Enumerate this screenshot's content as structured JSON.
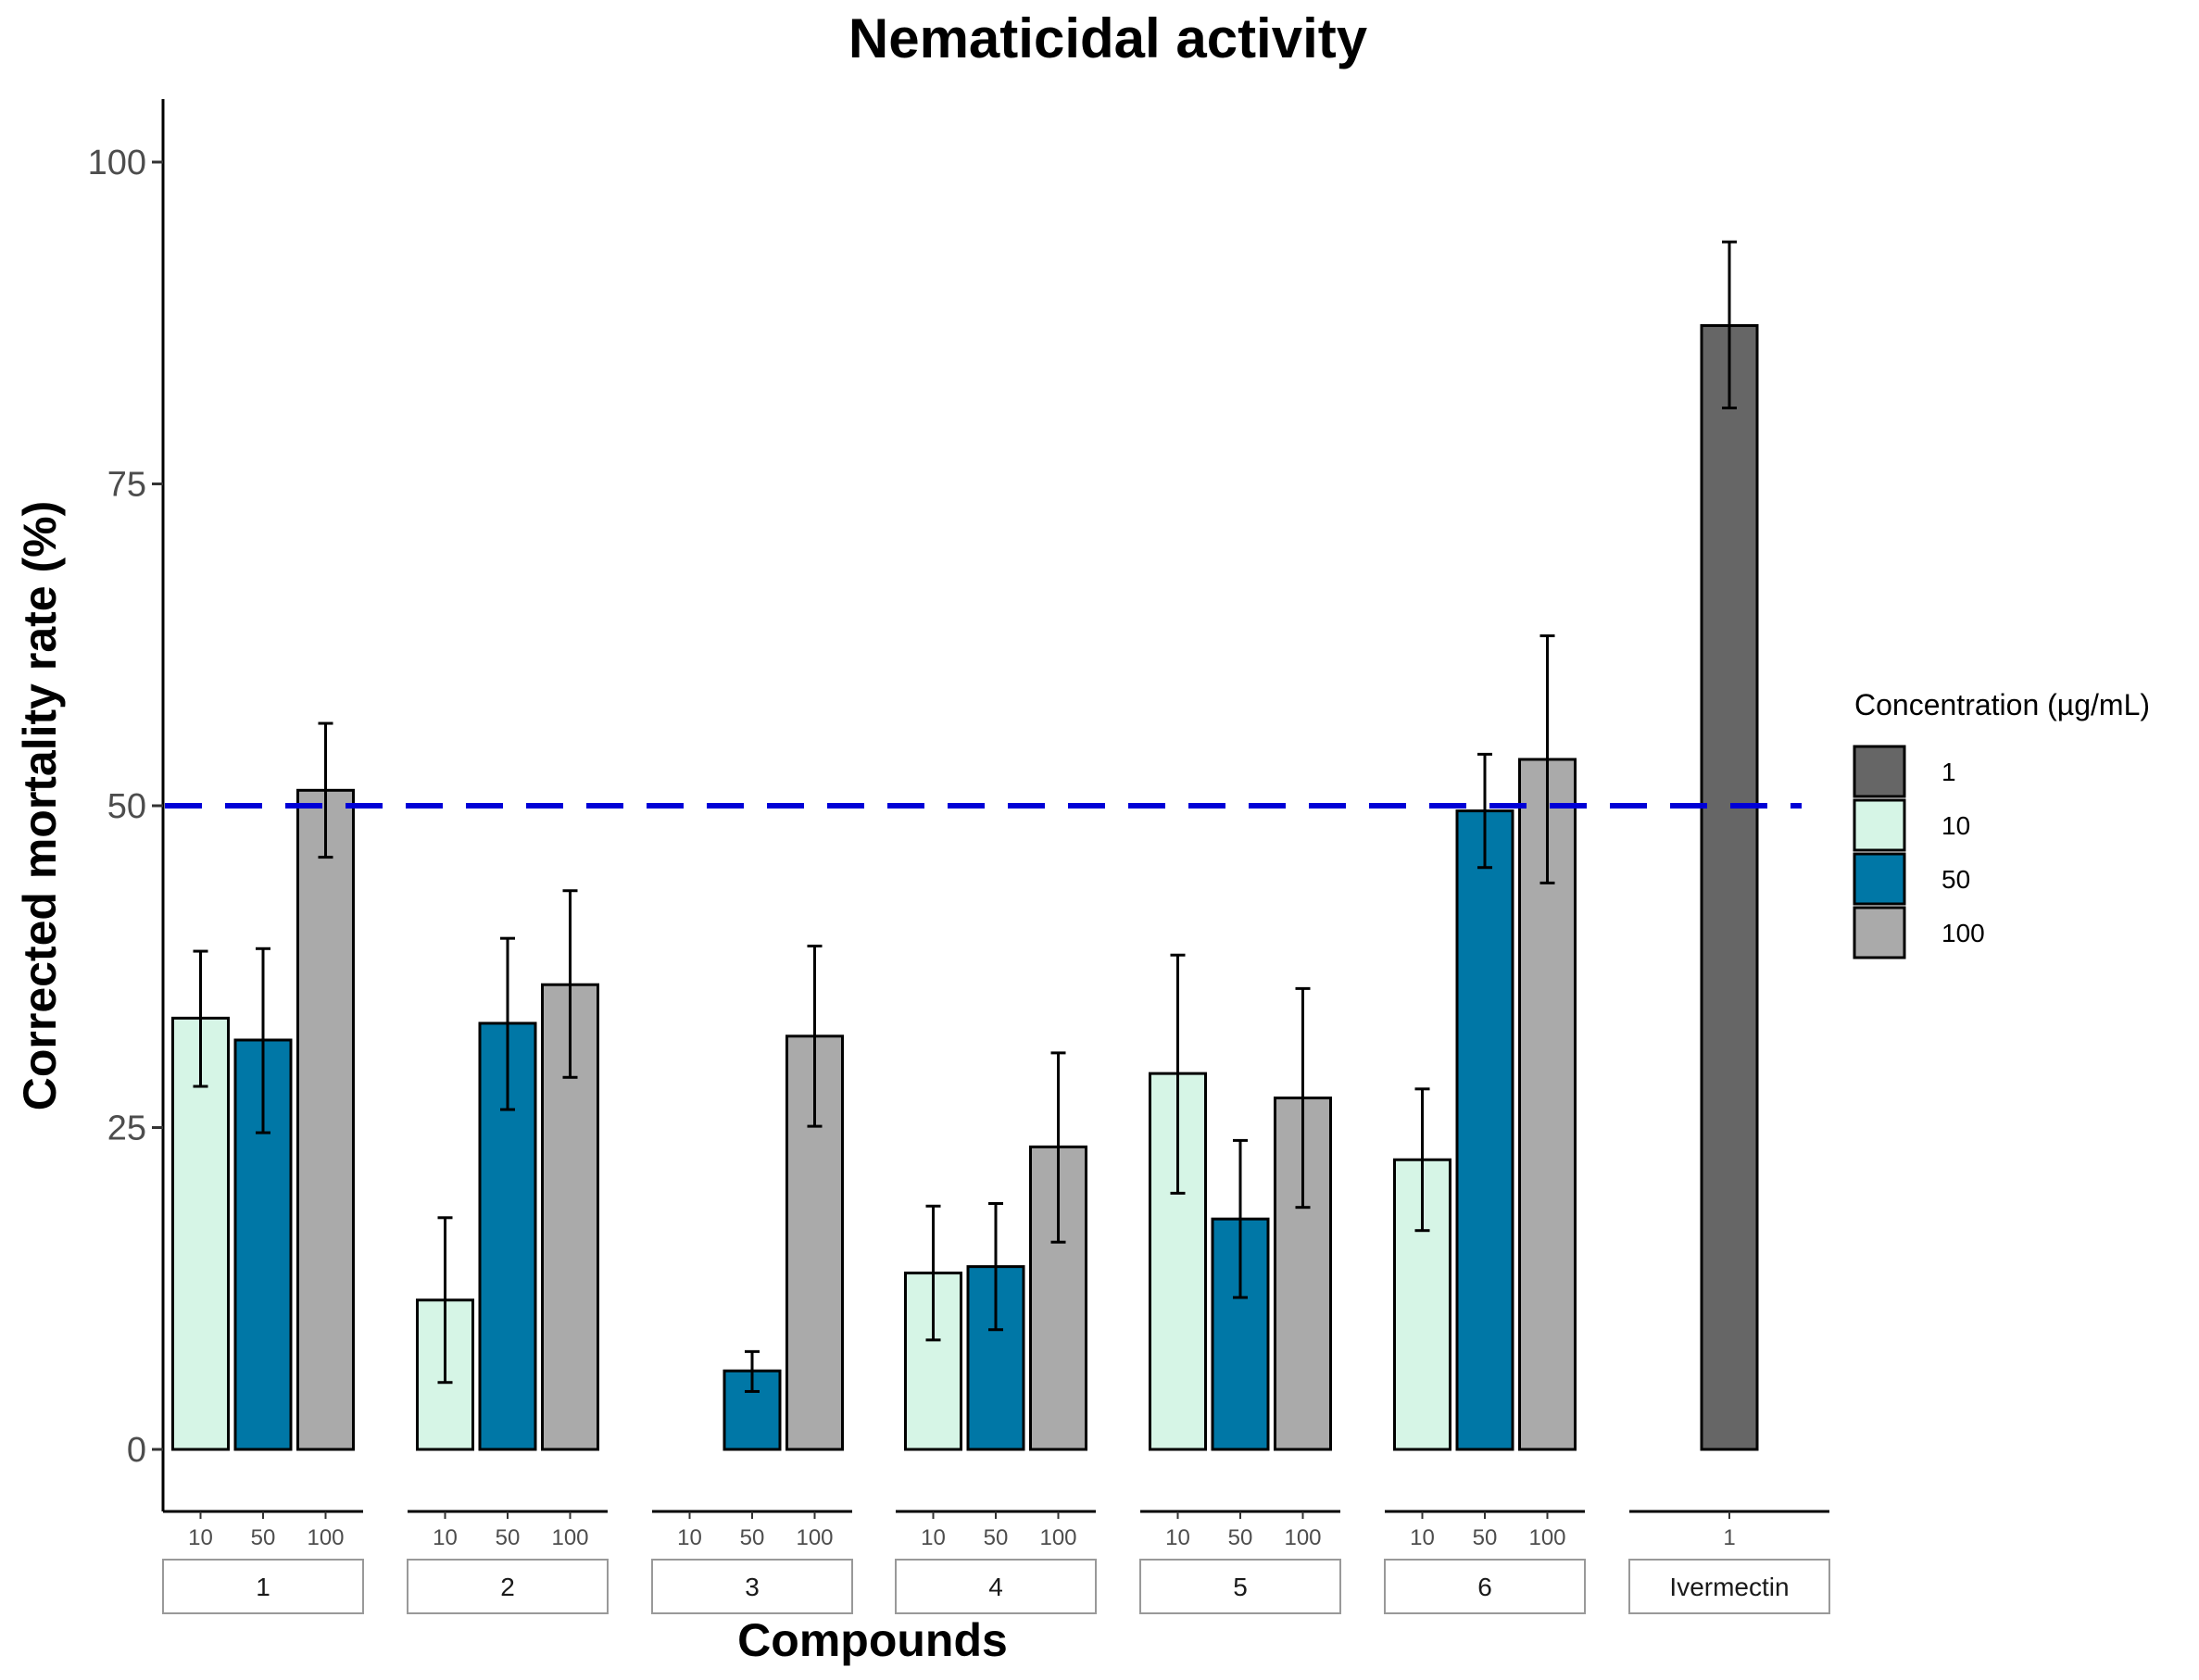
{
  "chart_data": {
    "type": "bar",
    "title": "Nematicidal activity",
    "xlabel": "Compounds",
    "ylabel": "Corrected mortality rate (%)",
    "ylim": [
      -5,
      105
    ],
    "yticks": [
      0,
      25,
      50,
      75,
      100
    ],
    "reference_line": {
      "value": 50,
      "color": "#0000d6",
      "style": "dashed"
    },
    "groups": [
      {
        "label": "1",
        "bars": [
          {
            "concentration": "10",
            "value": 33.5,
            "error_low": 28.2,
            "error_high": 38.7
          },
          {
            "concentration": "50",
            "value": 31.8,
            "error_low": 24.6,
            "error_high": 38.9
          },
          {
            "concentration": "100",
            "value": 51.2,
            "error_low": 46.0,
            "error_high": 56.4
          }
        ]
      },
      {
        "label": "2",
        "bars": [
          {
            "concentration": "10",
            "value": 11.6,
            "error_low": 5.2,
            "error_high": 18.0
          },
          {
            "concentration": "50",
            "value": 33.1,
            "error_low": 26.4,
            "error_high": 39.7
          },
          {
            "concentration": "100",
            "value": 36.1,
            "error_low": 28.9,
            "error_high": 43.4
          }
        ]
      },
      {
        "label": "3",
        "bars": [
          {
            "concentration": "10",
            "value": 0,
            "error_low": 0,
            "error_high": 0
          },
          {
            "concentration": "50",
            "value": 6.1,
            "error_low": 4.5,
            "error_high": 7.6
          },
          {
            "concentration": "100",
            "value": 32.1,
            "error_low": 25.1,
            "error_high": 39.1
          }
        ]
      },
      {
        "label": "4",
        "bars": [
          {
            "concentration": "10",
            "value": 13.7,
            "error_low": 8.5,
            "error_high": 18.9
          },
          {
            "concentration": "50",
            "value": 14.2,
            "error_low": 9.3,
            "error_high": 19.1
          },
          {
            "concentration": "100",
            "value": 23.5,
            "error_low": 16.1,
            "error_high": 30.8
          }
        ]
      },
      {
        "label": "5",
        "bars": [
          {
            "concentration": "10",
            "value": 29.2,
            "error_low": 19.9,
            "error_high": 38.4
          },
          {
            "concentration": "50",
            "value": 17.9,
            "error_low": 11.8,
            "error_high": 24.0
          },
          {
            "concentration": "100",
            "value": 27.3,
            "error_low": 18.8,
            "error_high": 35.8
          }
        ]
      },
      {
        "label": "6",
        "bars": [
          {
            "concentration": "10",
            "value": 22.5,
            "error_low": 17.0,
            "error_high": 28.0
          },
          {
            "concentration": "50",
            "value": 49.6,
            "error_low": 45.2,
            "error_high": 54.0
          },
          {
            "concentration": "100",
            "value": 53.6,
            "error_low": 44.0,
            "error_high": 63.2
          }
        ]
      },
      {
        "label": "Ivermectin",
        "bars": [
          {
            "concentration": "1",
            "value": 87.3,
            "error_low": 80.9,
            "error_high": 93.8
          }
        ]
      }
    ],
    "legend": {
      "title": "Concentration (µg/mL)",
      "position": "right",
      "items": [
        {
          "label": "1",
          "color": "#666666"
        },
        {
          "label": "10",
          "color": "#d6f5e6"
        },
        {
          "label": "50",
          "color": "#0077a6"
        },
        {
          "label": "100",
          "color": "#aaaaaa"
        }
      ]
    }
  }
}
